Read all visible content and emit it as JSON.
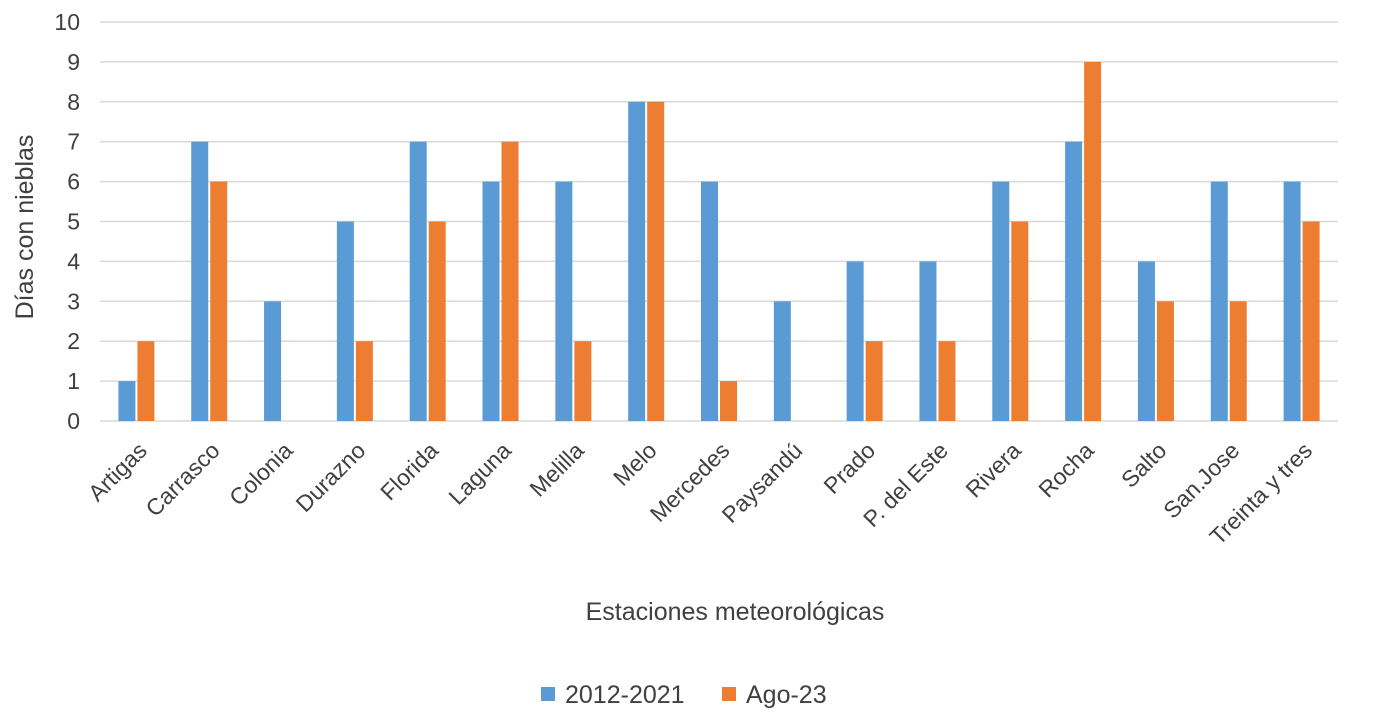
{
  "chart_data": {
    "type": "bar",
    "categories": [
      "Artigas",
      "Carrasco",
      "Colonia",
      "Durazno",
      "Florida",
      "Laguna",
      "Melilla",
      "Melo",
      "Mercedes",
      "Paysandú",
      "Prado",
      "P. del Este",
      "Rivera",
      "Rocha",
      "Salto",
      "San.Jose",
      "Treinta y tres"
    ],
    "series": [
      {
        "name": "2012-2021",
        "color": "#5b9bd5",
        "values": [
          1,
          7,
          3,
          5,
          7,
          6,
          6,
          8,
          6,
          3,
          4,
          4,
          6,
          7,
          4,
          6,
          6
        ]
      },
      {
        "name": "Ago-23",
        "color": "#ed7d31",
        "values": [
          2,
          6,
          0,
          2,
          5,
          7,
          2,
          8,
          1,
          0,
          2,
          2,
          5,
          9,
          3,
          3,
          5
        ]
      }
    ],
    "xlabel": "Estaciones meteorológicas",
    "ylabel": "Días con nieblas",
    "ylim": [
      0,
      10
    ],
    "yticks": [
      "0",
      "1",
      "2",
      "3",
      "4",
      "5",
      "6",
      "7",
      "8",
      "9",
      "10"
    ],
    "grid": true,
    "legend_position": "bottom"
  }
}
